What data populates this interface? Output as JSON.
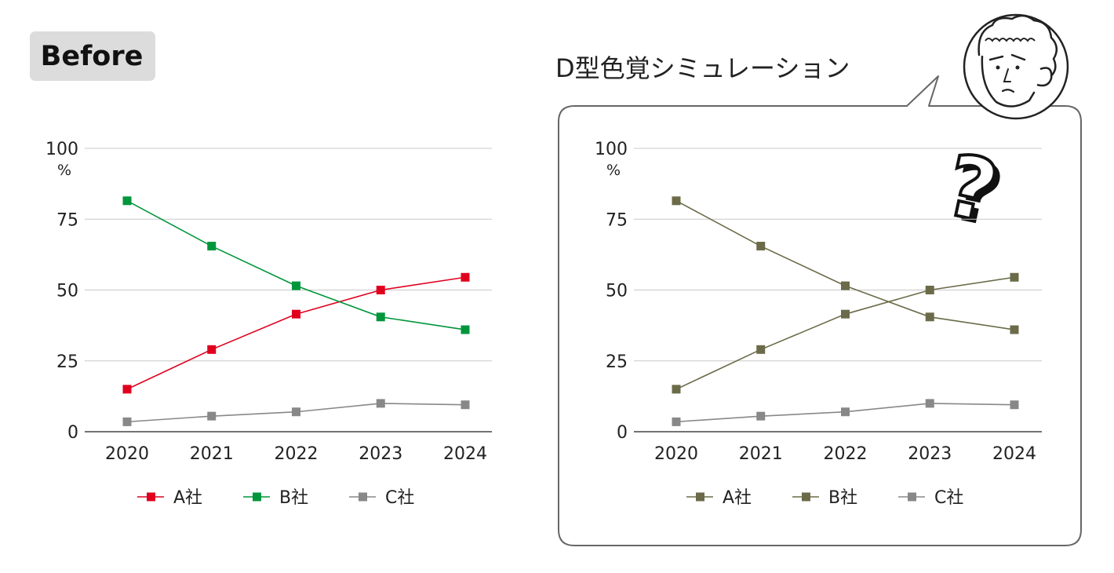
{
  "before_label": "Before",
  "simulation_title": "D型色覚シミュレーション",
  "question_mark": "?",
  "percent_unit": "%",
  "chart_data": [
    {
      "type": "line",
      "panel": "Before",
      "categories": [
        "2020",
        "2021",
        "2022",
        "2023",
        "2024"
      ],
      "ylim": [
        0,
        100
      ],
      "yticks": [
        0,
        25,
        50,
        75,
        100
      ],
      "yunit": "%",
      "grid": true,
      "legend": "bottom",
      "series": [
        {
          "name": "A社",
          "color": "#e0001e",
          "values": [
            15,
            29,
            41.5,
            50,
            54.5
          ]
        },
        {
          "name": "B社",
          "color": "#00963c",
          "values": [
            81.5,
            65.5,
            51.5,
            40.5,
            36
          ]
        },
        {
          "name": "C社",
          "color": "#888888",
          "values": [
            3.5,
            5.5,
            7,
            10,
            9.5
          ]
        }
      ]
    },
    {
      "type": "line",
      "panel": "D型色覚シミュレーション",
      "categories": [
        "2020",
        "2021",
        "2022",
        "2023",
        "2024"
      ],
      "ylim": [
        0,
        100
      ],
      "yticks": [
        0,
        25,
        50,
        75,
        100
      ],
      "yunit": "%",
      "grid": true,
      "legend": "bottom",
      "series": [
        {
          "name": "A社",
          "color": "#6b6b4a",
          "values": [
            15,
            29,
            41.5,
            50,
            54.5
          ]
        },
        {
          "name": "B社",
          "color": "#6b6b4a",
          "values": [
            81.5,
            65.5,
            51.5,
            40.5,
            36
          ]
        },
        {
          "name": "C社",
          "color": "#888888",
          "values": [
            3.5,
            5.5,
            7,
            10,
            9.5
          ]
        }
      ]
    }
  ]
}
